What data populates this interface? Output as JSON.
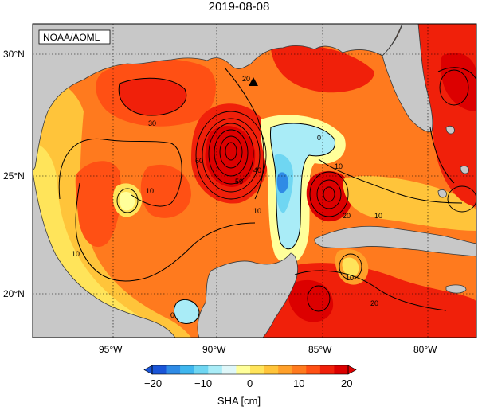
{
  "title": "2019-08-08",
  "credit": "NOAA/AOML",
  "lat_labels": [
    "30°N",
    "25°N",
    "20°N"
  ],
  "lon_labels": [
    "95°W",
    "90°W",
    "85°W",
    "80°W"
  ],
  "contour_labels": {
    "c30": "30",
    "c20a": "20",
    "c10a": "10",
    "c60": "60",
    "c50": "50",
    "c40": "40",
    "c10b": "10",
    "c0a": "0",
    "c10c": "10",
    "c20b": "20",
    "c10d": "10",
    "c10e": "10",
    "c20c": "20",
    "c10f": "10",
    "c0b": "0"
  },
  "colorbar": {
    "ticks": [
      "−20",
      "−10",
      "0",
      "10",
      "20"
    ],
    "label": "SHA [cm]",
    "colors": [
      "#1a55d8",
      "#2f8be6",
      "#3fb6ee",
      "#6fd6f2",
      "#a9ecf7",
      "#dff7f9",
      "#ffff9a",
      "#ffe45a",
      "#ffc43a",
      "#ffa02a",
      "#ff7a1e",
      "#ff5014",
      "#f0200a",
      "#dc0000"
    ]
  }
}
